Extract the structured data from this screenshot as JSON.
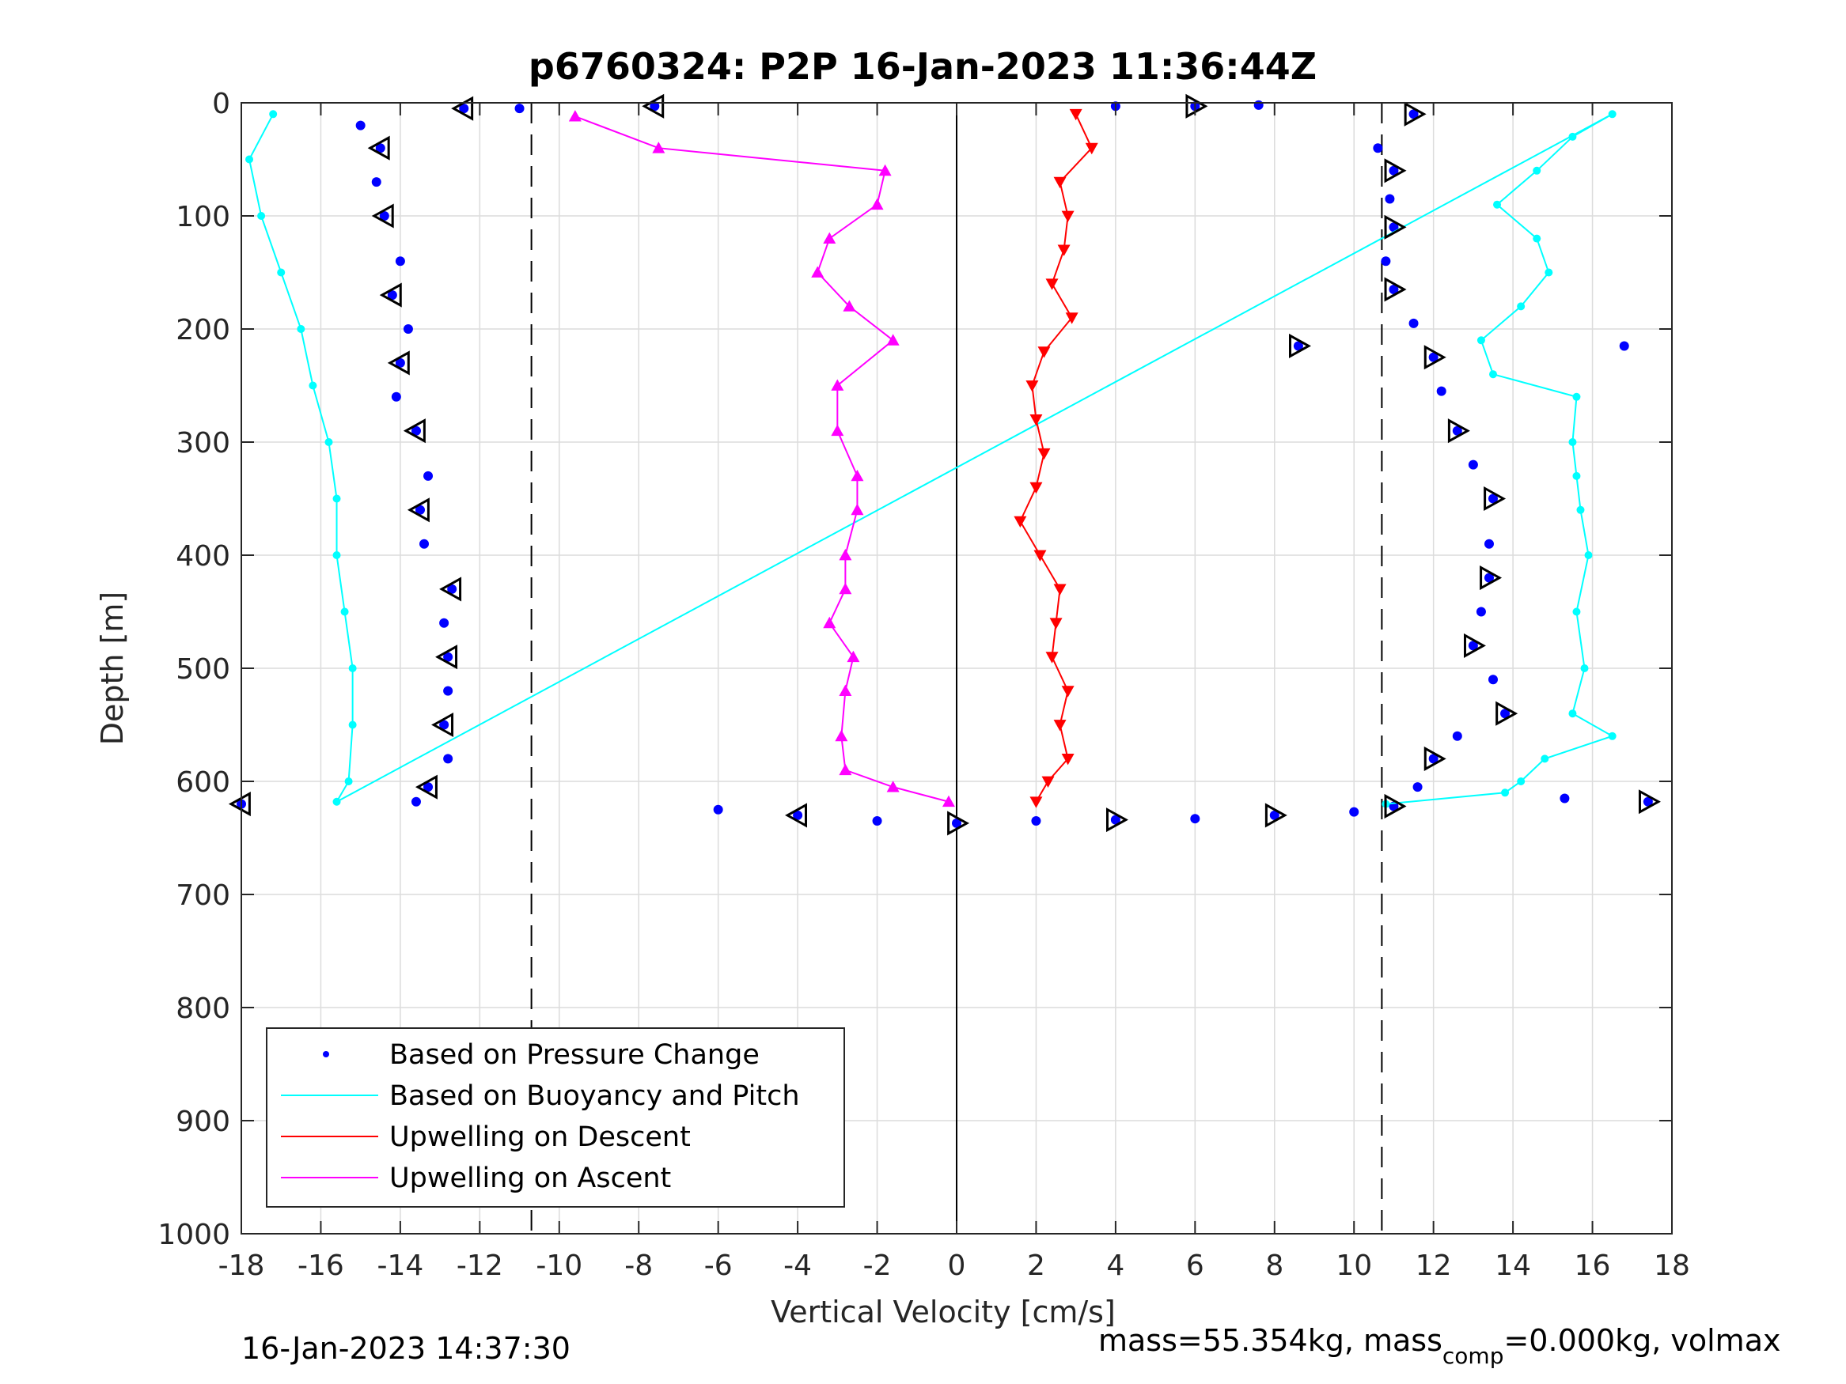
{
  "chart_data": {
    "type": "scatter",
    "title": "p6760324: P2P 16-Jan-2023 11:36:44Z",
    "xlabel": "Vertical Velocity [cm/s]",
    "ylabel": "Depth [m]",
    "xlim": [
      -18,
      18
    ],
    "ylim": [
      0,
      1000
    ],
    "y_reversed": true,
    "grid": true,
    "xticks": [
      -18,
      -16,
      -14,
      -12,
      -10,
      -8,
      -6,
      -4,
      -2,
      0,
      2,
      4,
      6,
      8,
      10,
      12,
      14,
      16,
      18
    ],
    "yticks": [
      0,
      100,
      200,
      300,
      400,
      500,
      600,
      700,
      800,
      900,
      1000
    ],
    "reference_lines": [
      {
        "x": -10.7,
        "style": "dashed",
        "color": "#000000"
      },
      {
        "x": 10.7,
        "style": "dashed",
        "color": "#000000"
      },
      {
        "x": 0,
        "style": "solid",
        "color": "#000000"
      }
    ],
    "legend_placement": "bottom-left",
    "legend": [
      {
        "label": "Based on Pressure Change",
        "color": "#0000ff",
        "marker": "dot"
      },
      {
        "label": "Based on Buoyancy and Pitch",
        "color": "#00ffff",
        "marker": "line"
      },
      {
        "label": "Upwelling on Descent",
        "color": "#ff0000",
        "marker": "line"
      },
      {
        "label": "Upwelling on Ascent",
        "color": "#ff00ff",
        "marker": "line"
      }
    ],
    "series": [
      {
        "name": "Based on Pressure Change",
        "color": "#0000ff",
        "marker": "dot",
        "points": [
          [
            -12.4,
            5
          ],
          [
            -15.0,
            20
          ],
          [
            -14.5,
            40
          ],
          [
            -14.6,
            70
          ],
          [
            -14.4,
            100
          ],
          [
            -14.0,
            140
          ],
          [
            -14.2,
            170
          ],
          [
            -13.8,
            200
          ],
          [
            -14.0,
            230
          ],
          [
            -14.1,
            260
          ],
          [
            -13.6,
            290
          ],
          [
            -13.3,
            330
          ],
          [
            -13.5,
            360
          ],
          [
            -13.4,
            390
          ],
          [
            -12.7,
            430
          ],
          [
            -12.9,
            460
          ],
          [
            -12.8,
            490
          ],
          [
            -12.8,
            520
          ],
          [
            -12.9,
            550
          ],
          [
            -12.8,
            580
          ],
          [
            -13.3,
            605
          ],
          [
            -13.6,
            618
          ],
          [
            -18.0,
            620
          ],
          [
            -6.0,
            625
          ],
          [
            -4.0,
            630
          ],
          [
            -2.0,
            635
          ],
          [
            0.0,
            637
          ],
          [
            2.0,
            635
          ],
          [
            4.0,
            634
          ],
          [
            6.0,
            633
          ],
          [
            8.0,
            630
          ],
          [
            10.0,
            627
          ],
          [
            11.0,
            622
          ],
          [
            11.6,
            605
          ],
          [
            12.0,
            580
          ],
          [
            12.6,
            560
          ],
          [
            13.8,
            540
          ],
          [
            13.5,
            510
          ],
          [
            13.0,
            480
          ],
          [
            13.2,
            450
          ],
          [
            13.4,
            420
          ],
          [
            13.4,
            390
          ],
          [
            13.5,
            350
          ],
          [
            13.0,
            320
          ],
          [
            12.6,
            290
          ],
          [
            12.2,
            255
          ],
          [
            12.0,
            225
          ],
          [
            11.5,
            195
          ],
          [
            11.0,
            165
          ],
          [
            10.8,
            140
          ],
          [
            11.0,
            110
          ],
          [
            10.9,
            85
          ],
          [
            11.0,
            60
          ],
          [
            10.6,
            40
          ],
          [
            11.5,
            10
          ],
          [
            -11.0,
            5
          ],
          [
            -7.6,
            3
          ],
          [
            4.0,
            3
          ],
          [
            6.0,
            3
          ],
          [
            7.6,
            2
          ],
          [
            8.6,
            215
          ],
          [
            16.8,
            215
          ],
          [
            17.4,
            618
          ],
          [
            15.3,
            615
          ]
        ]
      },
      {
        "name": "Based on Buoyancy and Pitch",
        "color": "#00ffff",
        "marker": "circle-line",
        "points": [
          [
            -17.2,
            10
          ],
          [
            -17.8,
            50
          ],
          [
            -17.5,
            100
          ],
          [
            -17.0,
            150
          ],
          [
            -16.5,
            200
          ],
          [
            -16.2,
            250
          ],
          [
            -15.8,
            300
          ],
          [
            -15.6,
            350
          ],
          [
            -15.6,
            400
          ],
          [
            -15.4,
            450
          ],
          [
            -15.2,
            500
          ],
          [
            -15.2,
            550
          ],
          [
            -15.3,
            600
          ],
          [
            -15.6,
            618
          ],
          [
            16.5,
            10
          ],
          [
            15.5,
            30
          ],
          [
            14.6,
            60
          ],
          [
            13.6,
            90
          ],
          [
            14.6,
            120
          ],
          [
            14.9,
            150
          ],
          [
            14.2,
            180
          ],
          [
            13.2,
            210
          ],
          [
            13.5,
            240
          ],
          [
            15.6,
            260
          ],
          [
            15.5,
            300
          ],
          [
            15.6,
            330
          ],
          [
            15.7,
            360
          ],
          [
            15.9,
            400
          ],
          [
            15.6,
            450
          ],
          [
            15.8,
            500
          ],
          [
            15.5,
            540
          ],
          [
            16.5,
            560
          ],
          [
            14.8,
            580
          ],
          [
            14.2,
            600
          ],
          [
            13.8,
            610
          ],
          [
            10.8,
            620
          ]
        ]
      },
      {
        "name": "Upwelling on Descent",
        "color": "#ff0000",
        "marker": "triangle-down",
        "points": [
          [
            3.0,
            10
          ],
          [
            3.4,
            40
          ],
          [
            2.6,
            70
          ],
          [
            2.8,
            100
          ],
          [
            2.7,
            130
          ],
          [
            2.4,
            160
          ],
          [
            2.9,
            190
          ],
          [
            2.2,
            220
          ],
          [
            1.9,
            250
          ],
          [
            2.0,
            280
          ],
          [
            2.2,
            310
          ],
          [
            2.0,
            340
          ],
          [
            1.6,
            370
          ],
          [
            2.1,
            400
          ],
          [
            2.6,
            430
          ],
          [
            2.5,
            460
          ],
          [
            2.4,
            490
          ],
          [
            2.8,
            520
          ],
          [
            2.6,
            550
          ],
          [
            2.8,
            580
          ],
          [
            2.3,
            600
          ],
          [
            2.0,
            618
          ]
        ]
      },
      {
        "name": "Upwelling on Ascent",
        "color": "#ff00ff",
        "marker": "triangle-up",
        "points": [
          [
            -9.6,
            12
          ],
          [
            -7.5,
            40
          ],
          [
            -1.8,
            60
          ],
          [
            -2.0,
            90
          ],
          [
            -3.2,
            120
          ],
          [
            -3.5,
            150
          ],
          [
            -2.7,
            180
          ],
          [
            -1.6,
            210
          ],
          [
            -3.0,
            250
          ],
          [
            -3.0,
            290
          ],
          [
            -2.5,
            330
          ],
          [
            -2.5,
            360
          ],
          [
            -2.8,
            400
          ],
          [
            -2.8,
            430
          ],
          [
            -3.2,
            460
          ],
          [
            -2.6,
            490
          ],
          [
            -2.8,
            520
          ],
          [
            -2.9,
            560
          ],
          [
            -2.8,
            590
          ],
          [
            -1.6,
            605
          ],
          [
            -0.2,
            618
          ]
        ]
      }
    ],
    "footer_left": "16-Jan-2023 14:37:30",
    "footer_right": {
      "prefix": "mass=55.354kg, mass",
      "subscript": "comp",
      "suffix": "=0.000kg, volmax"
    }
  }
}
